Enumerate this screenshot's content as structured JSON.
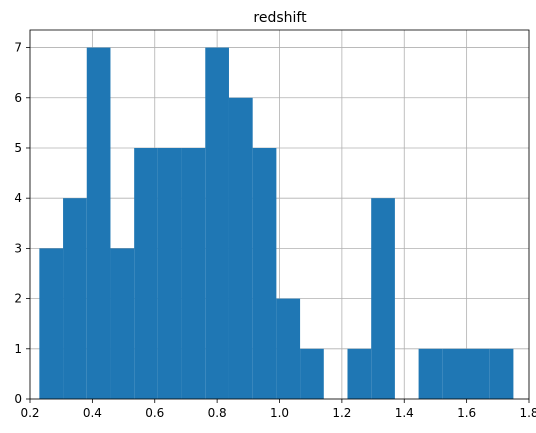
{
  "chart_data": {
    "type": "bar",
    "title": "redshift",
    "xlabel": "",
    "ylabel": "",
    "xlim": [
      0.2,
      1.8
    ],
    "ylim": [
      0,
      7.35
    ],
    "grid": true,
    "color": "#1f77b4",
    "x_ticks": [
      0.2,
      0.4,
      0.6,
      0.8,
      1.0,
      1.2,
      1.4,
      1.6,
      1.8
    ],
    "x_tick_labels": [
      "0.2",
      "0.4",
      "0.6",
      "0.8",
      "1.0",
      "1.2",
      "1.4",
      "1.6",
      "1.8"
    ],
    "y_ticks": [
      0,
      1,
      2,
      3,
      4,
      5,
      6,
      7
    ],
    "y_tick_labels": [
      "0",
      "1",
      "2",
      "3",
      "4",
      "5",
      "6",
      "7"
    ],
    "bins": [
      {
        "x0": 0.23,
        "x1": 0.306,
        "count": 3
      },
      {
        "x0": 0.306,
        "x1": 0.382,
        "count": 4
      },
      {
        "x0": 0.382,
        "x1": 0.458,
        "count": 7
      },
      {
        "x0": 0.458,
        "x1": 0.534,
        "count": 3
      },
      {
        "x0": 0.534,
        "x1": 0.61,
        "count": 5
      },
      {
        "x0": 0.61,
        "x1": 0.686,
        "count": 5
      },
      {
        "x0": 0.686,
        "x1": 0.762,
        "count": 5
      },
      {
        "x0": 0.762,
        "x1": 0.838,
        "count": 7
      },
      {
        "x0": 0.838,
        "x1": 0.914,
        "count": 6
      },
      {
        "x0": 0.914,
        "x1": 0.99,
        "count": 5
      },
      {
        "x0": 0.99,
        "x1": 1.066,
        "count": 2
      },
      {
        "x0": 1.066,
        "x1": 1.142,
        "count": 1
      },
      {
        "x0": 1.142,
        "x1": 1.218,
        "count": 0
      },
      {
        "x0": 1.218,
        "x1": 1.294,
        "count": 1
      },
      {
        "x0": 1.294,
        "x1": 1.37,
        "count": 4
      },
      {
        "x0": 1.37,
        "x1": 1.446,
        "count": 0
      },
      {
        "x0": 1.446,
        "x1": 1.522,
        "count": 1
      },
      {
        "x0": 1.522,
        "x1": 1.598,
        "count": 1
      },
      {
        "x0": 1.598,
        "x1": 1.674,
        "count": 1
      },
      {
        "x0": 1.674,
        "x1": 1.75,
        "count": 1
      }
    ]
  }
}
